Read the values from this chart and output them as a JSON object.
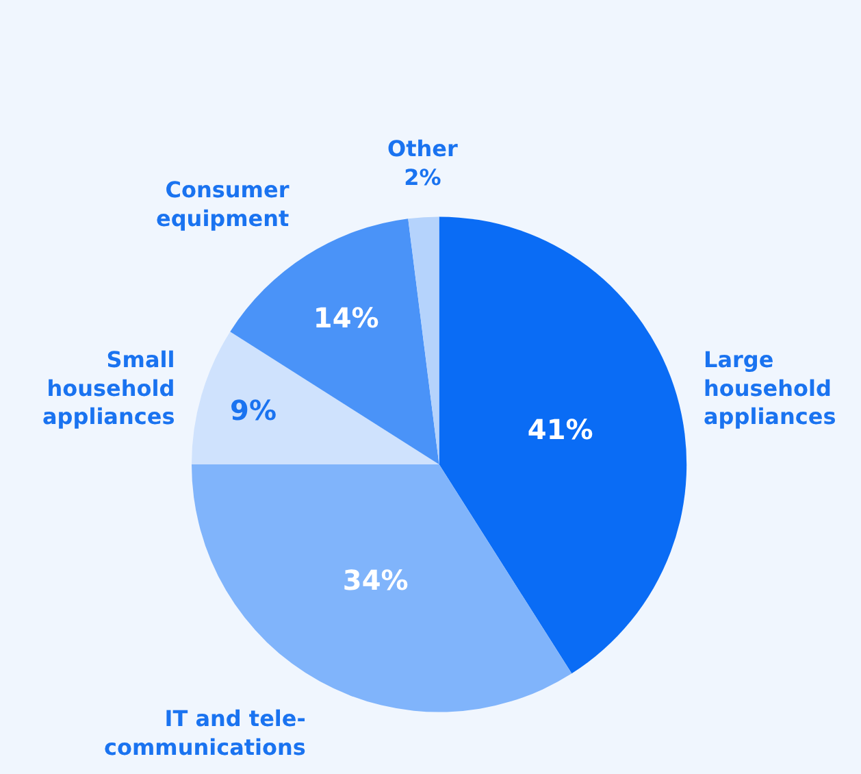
{
  "chart_data": {
    "type": "pie",
    "categories": [
      "Large\nhousehold\nappliances",
      "IT and tele-\ncommunications",
      "Small\nhousehold\nappliances",
      "Consumer\nequipment",
      "Other"
    ],
    "values": [
      41,
      34,
      9,
      14,
      2
    ],
    "colors": [
      "#0a6cf5",
      "#80b4fb",
      "#cfe2fd",
      "#4a93f8",
      "#b5d3fc"
    ],
    "value_labels": [
      "41%",
      "34%",
      "9%",
      "14%",
      "2%"
    ],
    "legend": false
  }
}
